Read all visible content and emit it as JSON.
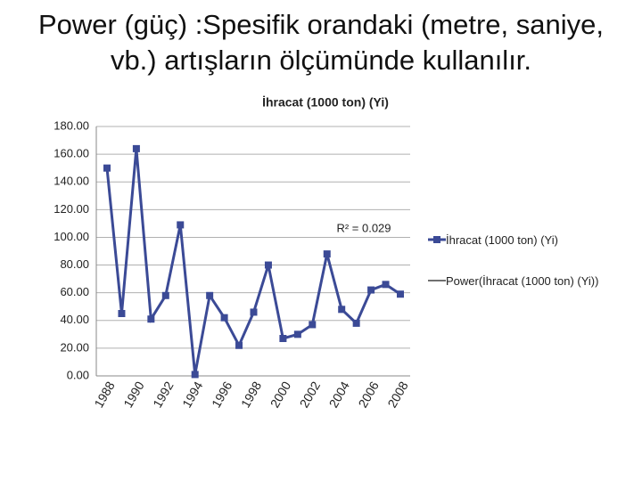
{
  "header": {
    "title": "Power (güç) :Spesifik orandaki (metre, saniye, vb.) artışların ölçümünde kullanılır."
  },
  "chart_data": {
    "type": "line",
    "title": "İhracat (1000 ton) (Yi)",
    "categories": [
      "1988",
      null,
      "1990",
      null,
      "1992",
      null,
      "1994",
      null,
      "1996",
      null,
      "1998",
      null,
      "2000",
      null,
      "2002",
      null,
      "2004",
      null,
      "2006",
      null,
      "2008"
    ],
    "series": [
      {
        "name": "İhracat (1000 ton) (Yi)",
        "color": "#3b4a96",
        "values": [
          150,
          45,
          164,
          41,
          58,
          109,
          1,
          58,
          42,
          22,
          46,
          80,
          27,
          30,
          37,
          88,
          48,
          38,
          62,
          66,
          59
        ]
      }
    ],
    "trendline": {
      "name": "Power(İhracat (1000 ton) (Yi))",
      "color": "#404040"
    },
    "annotation": "R² = 0.029",
    "ylim": [
      0,
      180
    ],
    "yticks": [
      {
        "value": 0,
        "label": "0.00"
      },
      {
        "value": 20,
        "label": "20.00"
      },
      {
        "value": 40,
        "label": "40.00"
      },
      {
        "value": 60,
        "label": "60.00"
      },
      {
        "value": 80,
        "label": "80.00"
      },
      {
        "value": 100,
        "label": "100.00"
      },
      {
        "value": 120,
        "label": "120.00"
      },
      {
        "value": 140,
        "label": "140.00"
      },
      {
        "value": 160,
        "label": "160.00"
      },
      {
        "value": 180,
        "label": "180.00"
      }
    ],
    "grid": true,
    "legend": "right"
  }
}
